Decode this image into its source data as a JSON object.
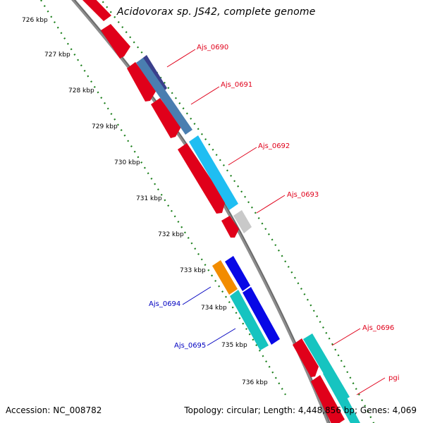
{
  "title": "Acidovorax sp. JS42, complete genome",
  "footer": {
    "accession": "Accession: NC_008782",
    "stats": "Topology: circular; Length: 4,448,856 bp; Genes: 4,069"
  },
  "colors": {
    "forward_label": "#e0001a",
    "reverse_label": "#0000c0",
    "backbone": "#8c8c8c",
    "tick_dots": "#1b7f1b"
  },
  "ruler": [
    "726 kbp",
    "727 kbp",
    "728 kbp",
    "729 kbp",
    "730 kbp",
    "731 kbp",
    "732 kbp",
    "733 kbp",
    "734 kbp",
    "735 kbp",
    "736 kbp"
  ],
  "genes": [
    {
      "name": "Ajs_0690",
      "strand": "forward",
      "color": "#e0001a"
    },
    {
      "name": "Ajs_0691",
      "strand": "forward",
      "color": "#e0001a"
    },
    {
      "name": "Ajs_0692",
      "strand": "forward",
      "color": "#e0001a"
    },
    {
      "name": "Ajs_0693",
      "strand": "forward",
      "color": "#e0001a"
    },
    {
      "name": "Ajs_0694",
      "strand": "reverse",
      "color": "#0000c0"
    },
    {
      "name": "Ajs_0695",
      "strand": "reverse",
      "color": "#0000c0"
    },
    {
      "name": "Ajs_0696",
      "strand": "forward",
      "color": "#e0001a"
    },
    {
      "name": "pgi",
      "strand": "forward",
      "color": "#e0001a"
    }
  ]
}
